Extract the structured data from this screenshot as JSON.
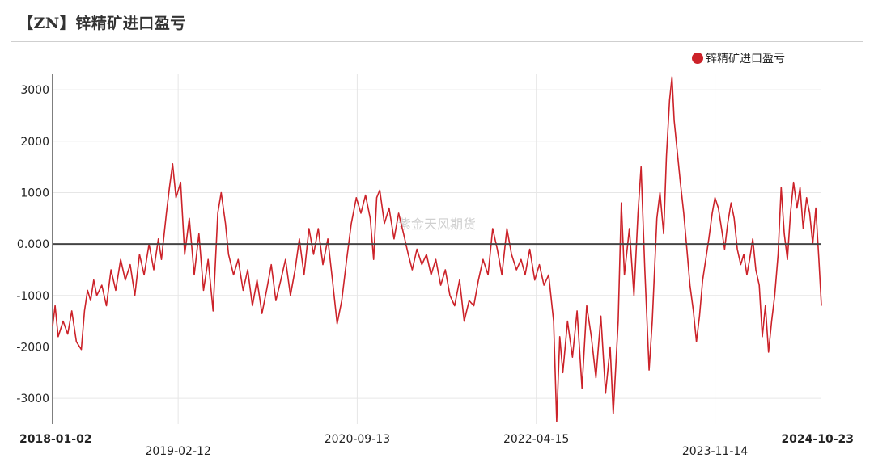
{
  "page": {
    "title": "【ZN】锌精矿进口盈亏"
  },
  "watermark": "紫金天风期货",
  "colors": {
    "series": "#cc2229",
    "zero_line": "#444444",
    "grid": "#e6e6e6"
  },
  "chart_data": {
    "type": "line",
    "title": "【ZN】锌精矿进口盈亏",
    "xlabel": "",
    "ylabel": "",
    "ylim": [
      -3500,
      3300
    ],
    "y_ticks": [
      {
        "value": 3000,
        "label": "3000"
      },
      {
        "value": 2000,
        "label": "2000"
      },
      {
        "value": 1000,
        "label": "1000"
      },
      {
        "value": 0,
        "label": "0.000"
      },
      {
        "value": -1000,
        "label": "-1000"
      },
      {
        "value": -2000,
        "label": "-2000"
      },
      {
        "value": -3000,
        "label": "-3000"
      }
    ],
    "x_range": [
      "2018-01-02",
      "2024-10-23"
    ],
    "x_ticks": [
      {
        "date": "2018-01-02",
        "label": "2018-01-02",
        "bold": true
      },
      {
        "date": "2019-02-12",
        "label": "2019-02-12",
        "bold": false
      },
      {
        "date": "2020-09-13",
        "label": "2020-09-13",
        "bold": false
      },
      {
        "date": "2022-04-15",
        "label": "2022-04-15",
        "bold": false
      },
      {
        "date": "2023-11-14",
        "label": "2023-11-14",
        "bold": false
      },
      {
        "date": "2024-10-23",
        "label": "2024-10-23",
        "bold": true
      }
    ],
    "legend": {
      "position": "top-right",
      "entries": [
        "锌精矿进口盈亏"
      ]
    },
    "grid": true,
    "series": [
      {
        "name": "锌精矿进口盈亏",
        "points": [
          [
            "2018-01-02",
            -1600
          ],
          [
            "2018-01-10",
            -1200
          ],
          [
            "2018-01-20",
            -1800
          ],
          [
            "2018-02-05",
            -1500
          ],
          [
            "2018-02-20",
            -1750
          ],
          [
            "2018-03-05",
            -1300
          ],
          [
            "2018-03-20",
            -1900
          ],
          [
            "2018-04-05",
            -2050
          ],
          [
            "2018-04-15",
            -1300
          ],
          [
            "2018-04-25",
            -900
          ],
          [
            "2018-05-05",
            -1100
          ],
          [
            "2018-05-15",
            -700
          ],
          [
            "2018-05-25",
            -1000
          ],
          [
            "2018-06-10",
            -800
          ],
          [
            "2018-06-25",
            -1200
          ],
          [
            "2018-07-10",
            -500
          ],
          [
            "2018-07-25",
            -900
          ],
          [
            "2018-08-10",
            -300
          ],
          [
            "2018-08-25",
            -700
          ],
          [
            "2018-09-10",
            -400
          ],
          [
            "2018-09-25",
            -1000
          ],
          [
            "2018-10-10",
            -200
          ],
          [
            "2018-10-25",
            -600
          ],
          [
            "2018-11-10",
            0
          ],
          [
            "2018-11-25",
            -500
          ],
          [
            "2018-12-10",
            100
          ],
          [
            "2018-12-20",
            -300
          ],
          [
            "2019-01-05",
            600
          ],
          [
            "2019-01-15",
            1100
          ],
          [
            "2019-01-25",
            1560
          ],
          [
            "2019-02-05",
            900
          ],
          [
            "2019-02-20",
            1200
          ],
          [
            "2019-03-05",
            -200
          ],
          [
            "2019-03-20",
            500
          ],
          [
            "2019-04-05",
            -600
          ],
          [
            "2019-04-20",
            200
          ],
          [
            "2019-05-05",
            -900
          ],
          [
            "2019-05-20",
            -300
          ],
          [
            "2019-06-05",
            -1300
          ],
          [
            "2019-06-20",
            600
          ],
          [
            "2019-07-01",
            1000
          ],
          [
            "2019-07-15",
            400
          ],
          [
            "2019-07-25",
            -200
          ],
          [
            "2019-08-10",
            -600
          ],
          [
            "2019-08-25",
            -300
          ],
          [
            "2019-09-10",
            -900
          ],
          [
            "2019-09-25",
            -500
          ],
          [
            "2019-10-10",
            -1200
          ],
          [
            "2019-10-25",
            -700
          ],
          [
            "2019-11-10",
            -1350
          ],
          [
            "2019-11-25",
            -900
          ],
          [
            "2019-12-10",
            -400
          ],
          [
            "2019-12-25",
            -1100
          ],
          [
            "2020-01-10",
            -700
          ],
          [
            "2020-01-25",
            -300
          ],
          [
            "2020-02-10",
            -1000
          ],
          [
            "2020-02-25",
            -500
          ],
          [
            "2020-03-10",
            100
          ],
          [
            "2020-03-25",
            -600
          ],
          [
            "2020-04-10",
            300
          ],
          [
            "2020-04-25",
            -200
          ],
          [
            "2020-05-10",
            300
          ],
          [
            "2020-05-25",
            -400
          ],
          [
            "2020-06-10",
            100
          ],
          [
            "2020-06-25",
            -700
          ],
          [
            "2020-07-10",
            -1550
          ],
          [
            "2020-07-25",
            -1100
          ],
          [
            "2020-08-10",
            -300
          ],
          [
            "2020-08-25",
            400
          ],
          [
            "2020-09-10",
            900
          ],
          [
            "2020-09-25",
            600
          ],
          [
            "2020-10-10",
            950
          ],
          [
            "2020-10-25",
            500
          ],
          [
            "2020-11-05",
            -300
          ],
          [
            "2020-11-15",
            900
          ],
          [
            "2020-11-25",
            1050
          ],
          [
            "2020-12-10",
            400
          ],
          [
            "2020-12-25",
            700
          ],
          [
            "2021-01-10",
            100
          ],
          [
            "2021-01-25",
            600
          ],
          [
            "2021-02-10",
            200
          ],
          [
            "2021-02-25",
            -200
          ],
          [
            "2021-03-10",
            -500
          ],
          [
            "2021-03-25",
            -100
          ],
          [
            "2021-04-10",
            -400
          ],
          [
            "2021-04-25",
            -200
          ],
          [
            "2021-05-10",
            -600
          ],
          [
            "2021-05-25",
            -300
          ],
          [
            "2021-06-10",
            -800
          ],
          [
            "2021-06-25",
            -500
          ],
          [
            "2021-07-10",
            -1000
          ],
          [
            "2021-07-25",
            -1200
          ],
          [
            "2021-08-10",
            -700
          ],
          [
            "2021-08-25",
            -1500
          ],
          [
            "2021-09-10",
            -1100
          ],
          [
            "2021-09-25",
            -1200
          ],
          [
            "2021-10-10",
            -700
          ],
          [
            "2021-10-25",
            -300
          ],
          [
            "2021-11-10",
            -600
          ],
          [
            "2021-11-25",
            300
          ],
          [
            "2021-12-10",
            -100
          ],
          [
            "2021-12-25",
            -600
          ],
          [
            "2022-01-10",
            300
          ],
          [
            "2022-01-25",
            -200
          ],
          [
            "2022-02-10",
            -500
          ],
          [
            "2022-02-25",
            -300
          ],
          [
            "2022-03-10",
            -600
          ],
          [
            "2022-03-25",
            -100
          ],
          [
            "2022-04-10",
            -700
          ],
          [
            "2022-04-25",
            -400
          ],
          [
            "2022-05-10",
            -800
          ],
          [
            "2022-05-25",
            -600
          ],
          [
            "2022-06-10",
            -1500
          ],
          [
            "2022-06-20",
            -3450
          ],
          [
            "2022-06-30",
            -1800
          ],
          [
            "2022-07-10",
            -2500
          ],
          [
            "2022-07-25",
            -1500
          ],
          [
            "2022-08-10",
            -2200
          ],
          [
            "2022-08-25",
            -1300
          ],
          [
            "2022-09-10",
            -2800
          ],
          [
            "2022-09-25",
            -1200
          ],
          [
            "2022-10-10",
            -1800
          ],
          [
            "2022-10-25",
            -2600
          ],
          [
            "2022-11-10",
            -1400
          ],
          [
            "2022-11-25",
            -2900
          ],
          [
            "2022-12-10",
            -2000
          ],
          [
            "2022-12-20",
            -3300
          ],
          [
            "2023-01-05",
            -1500
          ],
          [
            "2023-01-15",
            800
          ],
          [
            "2023-01-25",
            -600
          ],
          [
            "2023-02-10",
            300
          ],
          [
            "2023-02-25",
            -1000
          ],
          [
            "2023-03-10",
            600
          ],
          [
            "2023-03-20",
            1500
          ],
          [
            "2023-04-01",
            -500
          ],
          [
            "2023-04-15",
            -2450
          ],
          [
            "2023-04-25",
            -1500
          ],
          [
            "2023-05-10",
            500
          ],
          [
            "2023-05-20",
            1000
          ],
          [
            "2023-06-01",
            200
          ],
          [
            "2023-06-10",
            1700
          ],
          [
            "2023-06-20",
            2800
          ],
          [
            "2023-06-28",
            3250
          ],
          [
            "2023-07-05",
            2400
          ],
          [
            "2023-07-15",
            1800
          ],
          [
            "2023-07-25",
            1200
          ],
          [
            "2023-08-05",
            600
          ],
          [
            "2023-08-15",
            -100
          ],
          [
            "2023-08-25",
            -800
          ],
          [
            "2023-09-05",
            -1300
          ],
          [
            "2023-09-15",
            -1900
          ],
          [
            "2023-09-25",
            -1400
          ],
          [
            "2023-10-05",
            -700
          ],
          [
            "2023-10-15",
            -300
          ],
          [
            "2023-10-25",
            100
          ],
          [
            "2023-11-05",
            600
          ],
          [
            "2023-11-14",
            900
          ],
          [
            "2023-11-25",
            700
          ],
          [
            "2023-12-05",
            300
          ],
          [
            "2023-12-15",
            -100
          ],
          [
            "2023-12-25",
            400
          ],
          [
            "2024-01-05",
            800
          ],
          [
            "2024-01-15",
            500
          ],
          [
            "2024-01-25",
            -100
          ],
          [
            "2024-02-05",
            -400
          ],
          [
            "2024-02-15",
            -200
          ],
          [
            "2024-02-25",
            -600
          ],
          [
            "2024-03-05",
            -300
          ],
          [
            "2024-03-15",
            100
          ],
          [
            "2024-03-25",
            -500
          ],
          [
            "2024-04-05",
            -800
          ],
          [
            "2024-04-15",
            -1800
          ],
          [
            "2024-04-25",
            -1200
          ],
          [
            "2024-05-05",
            -2100
          ],
          [
            "2024-05-15",
            -1500
          ],
          [
            "2024-05-25",
            -1000
          ],
          [
            "2024-06-05",
            -200
          ],
          [
            "2024-06-15",
            1100
          ],
          [
            "2024-06-25",
            200
          ],
          [
            "2024-07-05",
            -300
          ],
          [
            "2024-07-15",
            600
          ],
          [
            "2024-07-25",
            1200
          ],
          [
            "2024-08-05",
            700
          ],
          [
            "2024-08-15",
            1100
          ],
          [
            "2024-08-25",
            300
          ],
          [
            "2024-09-05",
            900
          ],
          [
            "2024-09-15",
            600
          ],
          [
            "2024-09-25",
            0
          ],
          [
            "2024-10-05",
            700
          ],
          [
            "2024-10-15",
            -300
          ],
          [
            "2024-10-23",
            -1200
          ]
        ]
      }
    ]
  }
}
